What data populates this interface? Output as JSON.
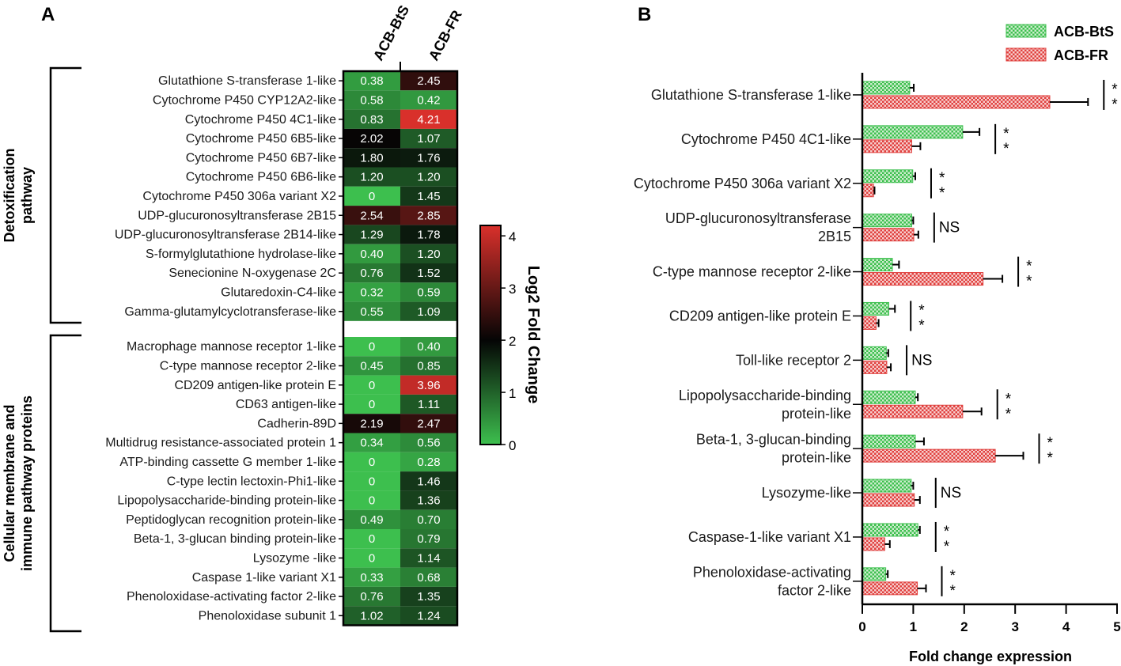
{
  "panel_a_label": "A",
  "panel_b_label": "B",
  "chart_data": [
    {
      "type": "heatmap",
      "columns": [
        "ACB-BtS",
        "ACB-FR"
      ],
      "colorbar": {
        "title": "Log2 Fold Change",
        "ticks": [
          "0",
          "1",
          "2",
          "3",
          "4"
        ],
        "range": [
          0,
          4.2
        ],
        "colors": {
          "low": "#3dbf4e",
          "mid": "#050505",
          "high": "#d9302b"
        }
      },
      "groups": [
        {
          "label_line1": "Detoxification",
          "label_line2": "pathway",
          "rows": [
            {
              "label": "Glutathione S-transferase 1-like",
              "values": [
                "0.38",
                "2.45"
              ]
            },
            {
              "label": "Cytochrome P450 CYP12A2-like",
              "values": [
                "0.58",
                "0.42"
              ]
            },
            {
              "label": "Cytochrome P450 4C1-like",
              "values": [
                "0.83",
                "4.21"
              ]
            },
            {
              "label": "Cytochrome P450 6B5-like",
              "values": [
                "2.02",
                "1.07"
              ]
            },
            {
              "label": "Cytochrome P450 6B7-like",
              "values": [
                "1.80",
                "1.76"
              ]
            },
            {
              "label": "Cytochrome P450 6B6-like",
              "values": [
                "1.20",
                "1.20"
              ]
            },
            {
              "label": "Cytochrome P450 306a variant X2",
              "values": [
                "0",
                "1.45"
              ]
            },
            {
              "label": "UDP-glucuronosyltransferase 2B15",
              "values": [
                "2.54",
                "2.85"
              ]
            },
            {
              "label": "UDP-glucuronosyltransferase 2B14-like",
              "values": [
                "1.29",
                "1.78"
              ]
            },
            {
              "label": "S-formylglutathione hydrolase-like",
              "values": [
                "0.40",
                "1.20"
              ]
            },
            {
              "label": "Senecionine N-oxygenase 2C",
              "values": [
                "0.76",
                "1.52"
              ]
            },
            {
              "label": "Glutaredoxin-C4-like",
              "values": [
                "0.32",
                "0.59"
              ]
            },
            {
              "label": "Gamma-glutamylcyclotransferase-like",
              "values": [
                "0.55",
                "1.09"
              ]
            }
          ]
        },
        {
          "label_line1": "Cellular membrane and",
          "label_line2": "immune pathway proteins",
          "rows": [
            {
              "label": "Macrophage mannose receptor 1-like",
              "values": [
                "0",
                "0.40"
              ]
            },
            {
              "label": "C-type mannose receptor 2-like",
              "values": [
                "0.45",
                "0.85"
              ]
            },
            {
              "label": "CD209 antigen-like protein E",
              "values": [
                "0",
                "3.96"
              ]
            },
            {
              "label": "CD63 antigen-like",
              "values": [
                "0",
                "1.11"
              ]
            },
            {
              "label": "Cadherin-89D",
              "values": [
                "2.19",
                "2.47"
              ]
            },
            {
              "label": "Multidrug resistance-associated protein 1",
              "values": [
                "0.34",
                "0.56"
              ]
            },
            {
              "label": "ATP-binding cassette G member 1-like",
              "values": [
                "0",
                "0.28"
              ]
            },
            {
              "label": "C-type lectin lectoxin-Phi1-like",
              "values": [
                "0",
                "1.46"
              ]
            },
            {
              "label": "Lipopolysaccharide-binding protein-like",
              "values": [
                "0",
                "1.36"
              ]
            },
            {
              "label": "Peptidoglycan recognition protein-like",
              "values": [
                "0.49",
                "0.70"
              ]
            },
            {
              "label": "Beta-1, 3-glucan binding protein-like",
              "values": [
                "0",
                "0.79"
              ]
            },
            {
              "label": "Lysozyme -like",
              "values": [
                "0",
                "1.14"
              ]
            },
            {
              "label": "Caspase 1-like variant X1",
              "values": [
                "0.33",
                "0.68"
              ]
            },
            {
              "label": "Phenoloxidase-activating factor 2-like",
              "values": [
                "0.76",
                "1.35"
              ]
            },
            {
              "label": "Phenoloxidase subunit 1",
              "values": [
                "1.02",
                "1.24"
              ]
            }
          ]
        }
      ]
    },
    {
      "type": "bar",
      "orientation": "horizontal",
      "xlabel": "Fold change expression",
      "xlim": [
        0,
        5
      ],
      "xticks": [
        "0",
        "1",
        "2",
        "3",
        "4",
        "5"
      ],
      "legend": {
        "position": "top-right"
      },
      "series": [
        {
          "name": "ACB-BtS",
          "color": "#3dbf4e"
        },
        {
          "name": "ACB-FR",
          "color": "#e0403e"
        }
      ],
      "categories": [
        {
          "lines": [
            "Glutathione S-transferase 1-like"
          ],
          "bts": 0.93,
          "bts_err": 0.08,
          "fr": 3.68,
          "fr_err": 0.75,
          "sig": [
            "*",
            "*"
          ]
        },
        {
          "lines": [
            "Cytochrome P450 4C1-like"
          ],
          "bts": 1.97,
          "bts_err": 0.33,
          "fr": 0.97,
          "fr_err": 0.17,
          "sig": [
            "*",
            "*"
          ]
        },
        {
          "lines": [
            "Cytochrome P450 306a variant X2"
          ],
          "bts": 0.99,
          "bts_err": 0.05,
          "fr": 0.22,
          "fr_err": 0.02,
          "sig": [
            "*",
            "*"
          ]
        },
        {
          "lines": [
            "UDP-glucuronosyltransferase",
            "2B15"
          ],
          "bts": 0.97,
          "bts_err": 0.03,
          "fr": 1.01,
          "fr_err": 0.09,
          "sig": [
            "NS"
          ]
        },
        {
          "lines": [
            "C-type mannose receptor 2-like"
          ],
          "bts": 0.59,
          "bts_err": 0.13,
          "fr": 2.37,
          "fr_err": 0.38,
          "sig": [
            "*",
            "*"
          ]
        },
        {
          "lines": [
            "CD209 antigen-like protein E"
          ],
          "bts": 0.52,
          "bts_err": 0.12,
          "fr": 0.27,
          "fr_err": 0.05,
          "sig": [
            "*",
            "*"
          ]
        },
        {
          "lines": [
            "Toll-like receptor 2"
          ],
          "bts": 0.47,
          "bts_err": 0.04,
          "fr": 0.48,
          "fr_err": 0.08,
          "sig": [
            "NS"
          ]
        },
        {
          "lines": [
            "Lipopolysaccharide-binding",
            "protein-like"
          ],
          "bts": 1.04,
          "bts_err": 0.05,
          "fr": 1.97,
          "fr_err": 0.37,
          "sig": [
            "*",
            "*"
          ]
        },
        {
          "lines": [
            "Beta-1, 3-glucan-binding",
            "protein-like"
          ],
          "bts": 1.04,
          "bts_err": 0.17,
          "fr": 2.61,
          "fr_err": 0.55,
          "sig": [
            "*",
            "*"
          ]
        },
        {
          "lines": [
            "Lysozyme-like"
          ],
          "bts": 0.96,
          "bts_err": 0.04,
          "fr": 1.02,
          "fr_err": 0.11,
          "sig": [
            "NS"
          ]
        },
        {
          "lines": [
            "Caspase-1-like variant X1"
          ],
          "bts": 1.09,
          "bts_err": 0.04,
          "fr": 0.44,
          "fr_err": 0.1,
          "sig": [
            "*",
            "*"
          ]
        },
        {
          "lines": [
            "Phenoloxidase-activating",
            "factor 2-like"
          ],
          "bts": 0.46,
          "bts_err": 0.04,
          "fr": 1.08,
          "fr_err": 0.17,
          "sig": [
            "*",
            "*"
          ]
        }
      ]
    }
  ]
}
